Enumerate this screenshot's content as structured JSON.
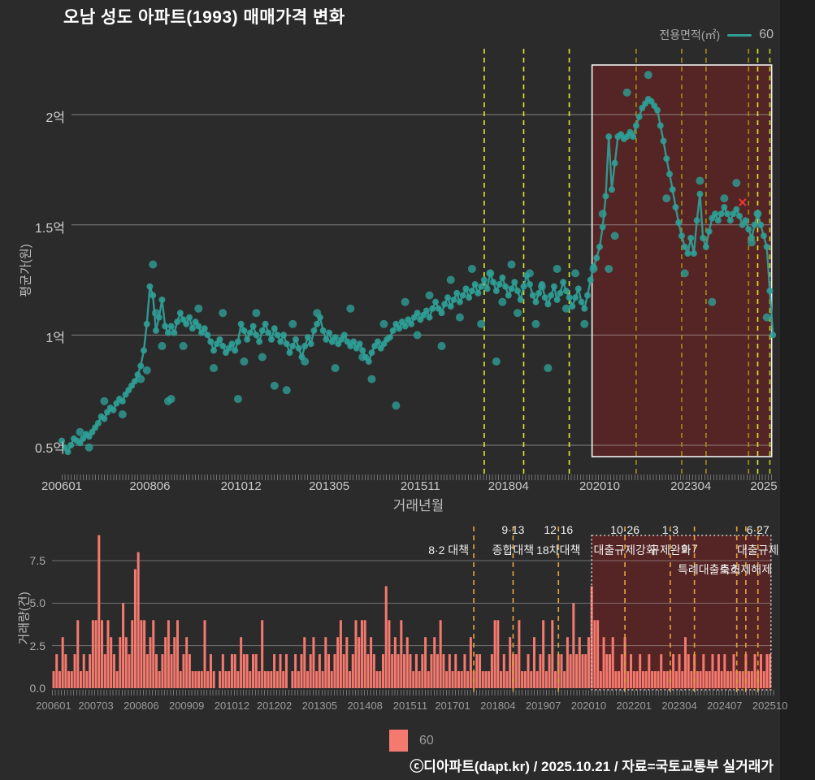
{
  "title": "오남 성도 아파트(1993) 매매가격 변화",
  "legend_top": {
    "label": "전용면적(㎡)",
    "value": "60"
  },
  "legend_bottom": {
    "value": "60"
  },
  "footer": "ⓒ디아파트(dapt.kr) / 2025.10.21 / 자료=국토교통부 실거래가",
  "colors": {
    "background": "#2b2b2b",
    "series_teal": "#2f9e96",
    "bar_salmon": "#f4796e",
    "policy_yellow": "#d8e02f",
    "policy_olive": "#a18a12",
    "policy_orange": "#dd9e3a",
    "highlight_fill": "rgba(150,28,28,0.40)",
    "highlight_border_top": "#f2f2f2",
    "highlight_border_bottom": "#cccccc",
    "gridline": "#c9c9c9",
    "red_x": "#e53935"
  },
  "chart_data": [
    {
      "type": "line",
      "name": "price-trend",
      "ylabel": "평균가(원)",
      "xlabel": "거래년월",
      "x_start_month": "2006-01",
      "ylim": [
        0.37,
        2.3
      ],
      "grid": true,
      "y_ticks": [
        {
          "v": 0.5,
          "label": "0.5억"
        },
        {
          "v": 1.0,
          "label": "1억"
        },
        {
          "v": 1.5,
          "label": "1.5억"
        },
        {
          "v": 2.0,
          "label": "2억"
        }
      ],
      "x_ticks": [
        {
          "m": 0,
          "label": "200601"
        },
        {
          "m": 29,
          "label": "200806"
        },
        {
          "m": 59,
          "label": "201012"
        },
        {
          "m": 88,
          "label": "201305"
        },
        {
          "m": 118,
          "label": "201511"
        },
        {
          "m": 147,
          "label": "201804"
        },
        {
          "m": 177,
          "label": "202010"
        },
        {
          "m": 207,
          "label": "202304"
        },
        {
          "m": 231,
          "label": "2025"
        }
      ],
      "series": [
        {
          "name": "60",
          "unit": "억원",
          "monthly_avg": [
            0.52,
            0.49,
            0.47,
            0.5,
            0.53,
            0.52,
            0.51,
            0.53,
            0.55,
            0.54,
            0.56,
            0.58,
            0.6,
            0.63,
            0.62,
            0.65,
            0.67,
            0.66,
            0.69,
            0.71,
            0.7,
            0.73,
            0.75,
            0.77,
            0.79,
            0.82,
            0.86,
            0.93,
            1.05,
            1.22,
            1.18,
            1.02,
            1.08,
            1.16,
            1.04,
            1.01,
            1.04,
            1.01,
            1.06,
            1.1,
            1.07,
            1.05,
            1.08,
            1.03,
            1.06,
            1.04,
            1.01,
            1.03,
            1.0,
            0.97,
            0.93,
            0.96,
            0.98,
            0.95,
            0.92,
            0.94,
            0.96,
            0.93,
            0.97,
            1.05,
            1.02,
            0.98,
            1.01,
            1.04,
            1.0,
            0.97,
            1.02,
            1.05,
            1.01,
            0.98,
            1.03,
            1.0,
            0.97,
            1.0,
            0.96,
            0.92,
            0.95,
            0.98,
            0.94,
            0.9,
            0.95,
            0.99,
            0.96,
            1.02,
            1.05,
            1.08,
            1.02,
            0.98,
            1.01,
            0.97,
            0.99,
            0.96,
            0.98,
            1.0,
            0.97,
            0.95,
            0.97,
            0.94,
            0.96,
            0.93,
            0.9,
            0.88,
            0.92,
            0.95,
            0.97,
            0.94,
            0.96,
            0.98,
            0.99,
            1.02,
            1.05,
            1.03,
            1.06,
            1.04,
            1.07,
            1.05,
            1.08,
            1.1,
            1.07,
            1.09,
            1.11,
            1.08,
            1.12,
            1.15,
            1.12,
            1.1,
            1.14,
            1.17,
            1.13,
            1.16,
            1.19,
            1.15,
            1.18,
            1.21,
            1.17,
            1.2,
            1.23,
            1.19,
            1.22,
            1.25,
            1.21,
            1.28,
            1.24,
            1.2,
            1.23,
            1.26,
            1.22,
            1.18,
            1.21,
            1.24,
            1.2,
            1.16,
            1.22,
            1.27,
            1.23,
            1.18,
            1.15,
            1.19,
            1.23,
            1.17,
            1.14,
            1.18,
            1.22,
            1.16,
            1.19,
            1.24,
            1.2,
            1.17,
            1.13,
            1.17,
            1.21,
            1.15,
            1.12,
            1.18,
            1.25,
            1.31,
            1.35,
            1.4,
            1.49,
            1.63,
            1.9,
            1.66,
            1.78,
            1.9,
            1.91,
            1.89,
            1.9,
            1.92,
            1.9,
            1.95,
            1.99,
            2.03,
            2.05,
            2.07,
            2.06,
            2.04,
            2.02,
            1.95,
            1.88,
            1.8,
            1.73,
            1.66,
            1.58,
            1.51,
            1.45,
            1.4,
            1.37,
            1.44,
            1.37,
            1.52,
            1.64,
            1.44,
            1.4,
            1.47,
            1.53,
            1.55,
            1.52,
            1.55,
            1.58,
            1.55,
            1.52,
            1.55,
            1.57,
            1.54,
            1.5,
            1.52,
            1.48,
            1.44,
            1.5,
            1.55,
            1.5,
            1.45,
            1.4,
            1.2,
            1.0
          ]
        }
      ],
      "scatter_extra": [
        [
          6,
          0.56
        ],
        [
          9,
          0.49
        ],
        [
          14,
          0.7
        ],
        [
          20,
          0.64
        ],
        [
          26,
          0.8
        ],
        [
          28,
          0.84
        ],
        [
          30,
          1.32
        ],
        [
          31,
          1.1
        ],
        [
          33,
          0.95
        ],
        [
          35,
          0.7
        ],
        [
          36,
          0.71
        ],
        [
          40,
          0.95
        ],
        [
          45,
          1.12
        ],
        [
          50,
          0.85
        ],
        [
          53,
          1.1
        ],
        [
          58,
          0.71
        ],
        [
          60,
          0.88
        ],
        [
          64,
          1.1
        ],
        [
          66,
          0.9
        ],
        [
          70,
          0.77
        ],
        [
          74,
          0.75
        ],
        [
          76,
          1.05
        ],
        [
          80,
          0.88
        ],
        [
          84,
          1.1
        ],
        [
          90,
          0.85
        ],
        [
          95,
          1.12
        ],
        [
          99,
          0.9
        ],
        [
          102,
          0.8
        ],
        [
          106,
          1.05
        ],
        [
          110,
          0.68
        ],
        [
          113,
          1.15
        ],
        [
          117,
          1.0
        ],
        [
          121,
          1.18
        ],
        [
          125,
          0.95
        ],
        [
          128,
          1.25
        ],
        [
          131,
          1.08
        ],
        [
          135,
          1.3
        ],
        [
          138,
          1.05
        ],
        [
          141,
          1.28
        ],
        [
          143,
          0.88
        ],
        [
          145,
          1.15
        ],
        [
          148,
          1.32
        ],
        [
          150,
          1.1
        ],
        [
          154,
          1.28
        ],
        [
          156,
          1.05
        ],
        [
          158,
          1.22
        ],
        [
          160,
          0.85
        ],
        [
          163,
          1.3
        ],
        [
          166,
          1.12
        ],
        [
          169,
          1.28
        ],
        [
          172,
          1.05
        ],
        [
          175,
          1.3
        ],
        [
          178,
          1.55
        ],
        [
          180,
          1.3
        ],
        [
          182,
          1.45
        ],
        [
          186,
          2.1
        ],
        [
          193,
          2.18
        ],
        [
          199,
          1.62
        ],
        [
          205,
          1.28
        ],
        [
          210,
          1.7
        ],
        [
          214,
          1.15
        ],
        [
          218,
          1.62
        ],
        [
          222,
          1.69
        ],
        [
          227,
          1.42
        ],
        [
          229,
          1.55
        ],
        [
          232,
          1.08
        ]
      ],
      "red_x_marker": {
        "m": 224,
        "v": 1.6,
        "glyph": "×"
      },
      "policy_lines": [
        {
          "m": 139,
          "color": "#d8e02f"
        },
        {
          "m": 152,
          "color": "#d8e02f"
        },
        {
          "m": 167,
          "color": "#d8e02f"
        },
        {
          "m": 189,
          "color": "#a18a12"
        },
        {
          "m": 204,
          "color": "#a18a12"
        },
        {
          "m": 212,
          "color": "#a18a12"
        },
        {
          "m": 226,
          "color": "#a18a12"
        },
        {
          "m": 229,
          "color": "#d8e02f"
        },
        {
          "m": 233,
          "color": "#b9c81e"
        }
      ],
      "highlight_box": {
        "from_m": 174.5,
        "to_m": 233.6
      }
    },
    {
      "type": "bar",
      "name": "transaction-volume",
      "ylabel": "거래량(건)",
      "ylim": [
        0,
        9.5
      ],
      "grid": true,
      "y_ticks": [
        {
          "v": 0.0,
          "label": "0.0"
        },
        {
          "v": 2.5,
          "label": "2.5"
        },
        {
          "v": 5.0,
          "label": "5.0"
        },
        {
          "v": 7.5,
          "label": "7.5"
        }
      ],
      "x_ticks": [
        {
          "m": 0,
          "label": "200601"
        },
        {
          "m": 14,
          "label": "200703"
        },
        {
          "m": 29,
          "label": "200806"
        },
        {
          "m": 44,
          "label": "200909"
        },
        {
          "m": 59,
          "label": "201012"
        },
        {
          "m": 73,
          "label": "201202"
        },
        {
          "m": 88,
          "label": "201305"
        },
        {
          "m": 103,
          "label": "201408"
        },
        {
          "m": 118,
          "label": "201511"
        },
        {
          "m": 132,
          "label": "201701"
        },
        {
          "m": 147,
          "label": "201804"
        },
        {
          "m": 162,
          "label": "201907"
        },
        {
          "m": 177,
          "label": "202010"
        },
        {
          "m": 192,
          "label": "202201"
        },
        {
          "m": 207,
          "label": "202304"
        },
        {
          "m": 222,
          "label": "202407"
        },
        {
          "m": 237,
          "label": "202510"
        }
      ],
      "series": [
        {
          "name": "60",
          "values": [
            1,
            2,
            1,
            3,
            2,
            1,
            1,
            2,
            4,
            1,
            2,
            1,
            2,
            4,
            4,
            9,
            4,
            2,
            4,
            3,
            2,
            1,
            3,
            5,
            3,
            2,
            4,
            7,
            8,
            4,
            4,
            2,
            3,
            4,
            2,
            1,
            2,
            3,
            4,
            2,
            3,
            4,
            1,
            2,
            3,
            2,
            1,
            1,
            1,
            1,
            4,
            1,
            2,
            1,
            0,
            1,
            2,
            1,
            1,
            2,
            2,
            1,
            3,
            2,
            2,
            1,
            2,
            2,
            1,
            4,
            1,
            1,
            1,
            2,
            1,
            2,
            1,
            2,
            0,
            1,
            2,
            1,
            2,
            3,
            1,
            2,
            3,
            1,
            2,
            1,
            3,
            2,
            1,
            2,
            3,
            4,
            2,
            3,
            1,
            2,
            4,
            3,
            4,
            4,
            2,
            3,
            2,
            1,
            1,
            2,
            6,
            4,
            2,
            3,
            2,
            4,
            2,
            3,
            2,
            1,
            2,
            1,
            2,
            3,
            1,
            2,
            3,
            2,
            4,
            2,
            1,
            2,
            1,
            2,
            1,
            1,
            2,
            1,
            3,
            1,
            2,
            2,
            1,
            1,
            1,
            2,
            4,
            4,
            1,
            2,
            1,
            3,
            2,
            2,
            4,
            1,
            1,
            2,
            1,
            3,
            1,
            2,
            4,
            1,
            2,
            4,
            1,
            2,
            2,
            1,
            3,
            2,
            5,
            2,
            3,
            2,
            2,
            3,
            6,
            4,
            4,
            1,
            3,
            2,
            2,
            3,
            1,
            1,
            2,
            3,
            1,
            2,
            1,
            1,
            2,
            1,
            1,
            2,
            1,
            1,
            1,
            2,
            1,
            1,
            1,
            2,
            1,
            2,
            1,
            3,
            2,
            1,
            2,
            1,
            1,
            2,
            1,
            1,
            2,
            1,
            2,
            1,
            2,
            1,
            1,
            2,
            1,
            1,
            1,
            2,
            1,
            1,
            2,
            1,
            2,
            1,
            2,
            2
          ]
        }
      ],
      "policy_lines": [
        {
          "m": 139,
          "color": "#dd9e3a"
        },
        {
          "m": 152,
          "color": "#dd9e3a"
        },
        {
          "m": 167,
          "color": "#dd9e3a"
        },
        {
          "m": 189,
          "color": "#dd9e3a"
        },
        {
          "m": 204,
          "color": "#dd9e3a"
        },
        {
          "m": 212,
          "color": "#dd9e3a"
        },
        {
          "m": 226,
          "color": "#dd9e3a"
        },
        {
          "m": 229,
          "color": "#dd9e3a"
        },
        {
          "m": 233,
          "color": "#dd9e3a"
        }
      ],
      "annotations": [
        {
          "text": "8·2 대책",
          "m": 139,
          "row": 1,
          "anchor": "end"
        },
        {
          "text": "9·13",
          "m": 152,
          "row": 0
        },
        {
          "text": "종합대책",
          "m": 152,
          "row": 1
        },
        {
          "text": "12·16",
          "m": 167,
          "row": 0
        },
        {
          "text": "18차대책",
          "m": 167,
          "row": 1
        },
        {
          "text": "10·26",
          "m": 189,
          "row": 0
        },
        {
          "text": "대출규제강화",
          "m": 189,
          "row": 1
        },
        {
          "text": "1·3",
          "m": 204,
          "row": 0
        },
        {
          "text": "규제완화",
          "m": 204,
          "row": 1
        },
        {
          "text": "9·7",
          "m": 212,
          "row": 1,
          "dx": -6
        },
        {
          "text": "특례대출축소",
          "m": 212,
          "row": 2,
          "dx": 18
        },
        {
          "text": "토허제해제",
          "m": 229,
          "row": 2
        },
        {
          "text": "6·27",
          "m": 233,
          "row": 0
        },
        {
          "text": "대출규제",
          "m": 233,
          "row": 1
        }
      ],
      "highlight_box": {
        "from_m": 178,
        "to_m": 237.3
      }
    }
  ]
}
